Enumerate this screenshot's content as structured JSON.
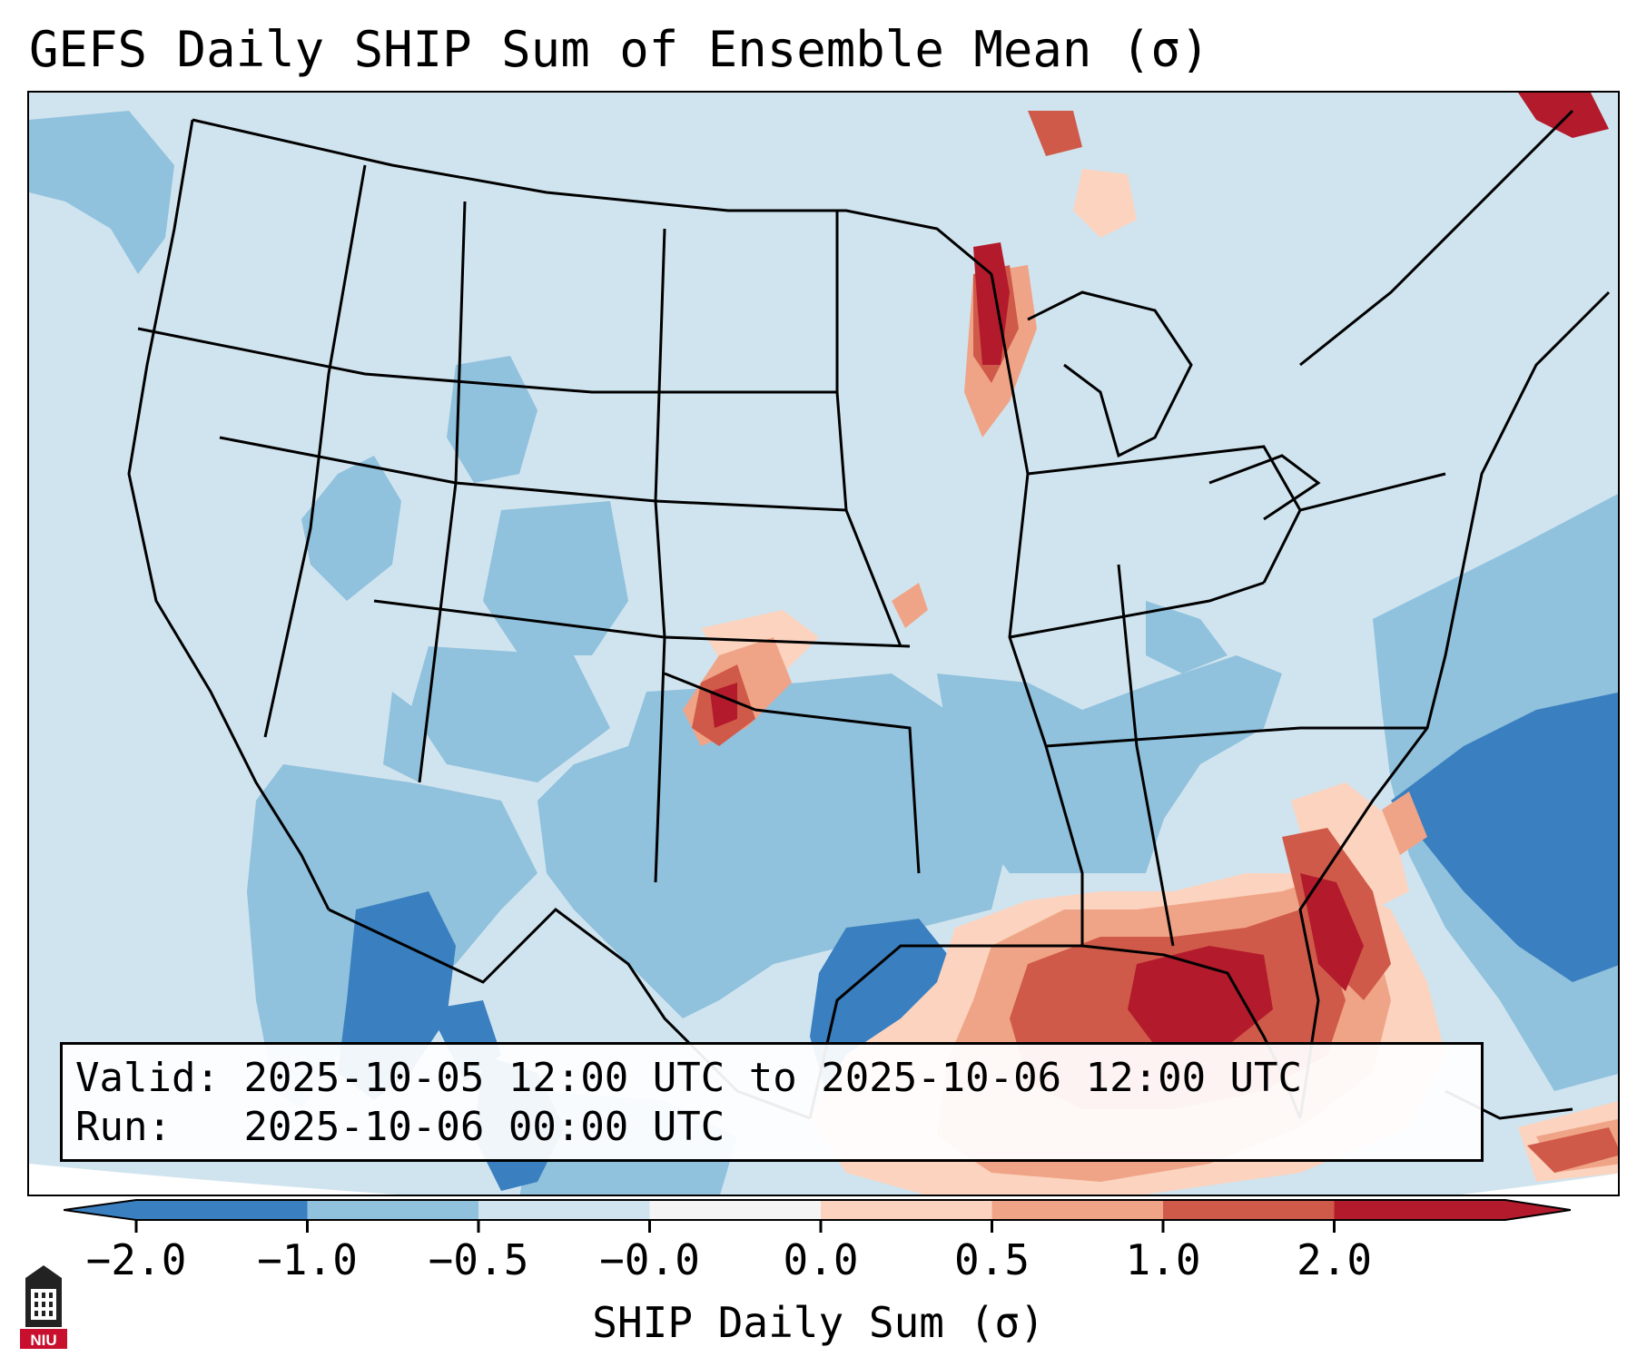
{
  "title": "GEFS Daily SHIP Sum of Ensemble Mean (σ)",
  "info": {
    "valid_label": "Valid:",
    "valid_value": "2025-10-05 12:00 UTC to 2025-10-06 12:00 UTC",
    "run_label": "Run:",
    "run_value": "2025-10-06 00:00 UTC"
  },
  "colorbar": {
    "label": "SHIP Daily Sum (σ)",
    "ticks": [
      "−2.0",
      "−1.0",
      "−0.5",
      "−0.0",
      "0.0",
      "0.5",
      "1.0",
      "2.0"
    ],
    "colors": [
      "#3a7fbf",
      "#90c1dd",
      "#d0e4ef",
      "#f4f4f4",
      "#fbd3bf",
      "#f0a487",
      "#d05a49",
      "#b31b2c"
    ],
    "extend": "both"
  },
  "map": {
    "region": "CONUS",
    "projection": "lambert-conformal",
    "colors": {
      "near_zero_neg": "#d0e4ef",
      "moderate_neg": "#90c1dd",
      "strong_neg": "#3a7fbf",
      "near_zero_pos": "#fbd3bf",
      "moderate_pos": "#f0a487",
      "strong_pos": "#d05a49",
      "very_strong_pos": "#b31b2c",
      "outside": "#ffffff",
      "borders": "#000000"
    }
  },
  "logo": {
    "text": "NIU",
    "icon": "niu-logo-icon"
  }
}
